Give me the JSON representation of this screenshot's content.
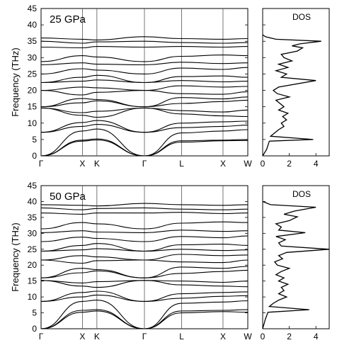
{
  "chart_data": [
    {
      "type": "line",
      "panel_label": "25 GPa",
      "ylabel": "Frequency (THz)",
      "ylim": [
        0,
        45
      ],
      "yticks": [
        0,
        5,
        10,
        15,
        20,
        25,
        30,
        35,
        40,
        45
      ],
      "path_labels": [
        "Γ",
        "X",
        "K",
        "Γ",
        "L",
        "X",
        "W"
      ],
      "path_positions": [
        0,
        0.2,
        0.27,
        0.5,
        0.68,
        0.88,
        1.0
      ],
      "bands": [
        {
          "y": [
            0,
            4.8,
            5.2,
            0,
            4.6,
            4.8,
            5.0
          ]
        },
        {
          "y": [
            0,
            4.5,
            4.9,
            0,
            4.2,
            4.6,
            4.7
          ]
        },
        {
          "y": [
            0,
            7.6,
            8.2,
            0,
            7.0,
            7.6,
            8.0
          ]
        },
        {
          "y": [
            7.2,
            9.0,
            9.6,
            7.2,
            8.6,
            9.0,
            9.4
          ]
        },
        {
          "y": [
            7.2,
            10.2,
            10.8,
            7.2,
            10.0,
            10.4,
            10.6
          ]
        },
        {
          "y": [
            14.6,
            12.4,
            11.8,
            14.6,
            12.8,
            12.2,
            12.0
          ]
        },
        {
          "y": [
            14.6,
            13.2,
            13.6,
            14.6,
            13.8,
            13.4,
            14.0
          ]
        },
        {
          "y": [
            15.0,
            16.2,
            16.8,
            15.0,
            16.0,
            16.6,
            17.0
          ]
        },
        {
          "y": [
            15.0,
            17.5,
            17.2,
            15.0,
            17.8,
            17.4,
            18.0
          ]
        },
        {
          "y": [
            20.0,
            18.6,
            19.4,
            20.0,
            19.0,
            18.8,
            19.6
          ]
        },
        {
          "y": [
            20.0,
            21.0,
            20.8,
            20.0,
            21.4,
            21.0,
            21.2
          ]
        },
        {
          "y": [
            22.4,
            22.8,
            23.2,
            22.4,
            23.0,
            22.6,
            22.8
          ]
        },
        {
          "y": [
            22.4,
            24.0,
            24.6,
            22.4,
            24.2,
            24.4,
            24.0
          ]
        },
        {
          "y": [
            25.0,
            26.6,
            26.2,
            25.0,
            26.8,
            26.4,
            27.0
          ]
        },
        {
          "y": [
            27.8,
            28.4,
            28.0,
            27.8,
            28.6,
            28.2,
            28.4
          ]
        },
        {
          "y": [
            28.8,
            30.6,
            30.2,
            28.8,
            30.4,
            30.8,
            30.6
          ]
        },
        {
          "y": [
            33.2,
            33.0,
            33.4,
            33.2,
            33.4,
            33.2,
            33.4
          ]
        },
        {
          "y": [
            35.0,
            34.4,
            34.8,
            35.0,
            34.6,
            34.4,
            34.6
          ]
        },
        {
          "y": [
            36.0,
            35.6,
            35.4,
            36.4,
            35.8,
            35.6,
            35.8
          ]
        }
      ],
      "dos": {
        "label": "DOS",
        "xlim": [
          0,
          5
        ],
        "xticks": [
          0,
          2,
          4
        ],
        "points": [
          [
            0,
            0
          ],
          [
            0.3,
            2
          ],
          [
            0.5,
            4.5
          ],
          [
            3.8,
            5
          ],
          [
            0.6,
            6
          ],
          [
            0.9,
            7
          ],
          [
            1.2,
            8
          ],
          [
            1.6,
            9
          ],
          [
            1.4,
            10
          ],
          [
            1.8,
            11
          ],
          [
            1.5,
            12
          ],
          [
            1.9,
            13
          ],
          [
            1.2,
            14
          ],
          [
            1.6,
            15
          ],
          [
            1.3,
            16
          ],
          [
            1.0,
            17
          ],
          [
            2.0,
            18
          ],
          [
            1.1,
            19
          ],
          [
            0.8,
            20
          ],
          [
            1.2,
            21
          ],
          [
            4.0,
            23
          ],
          [
            1.4,
            24
          ],
          [
            1.8,
            25
          ],
          [
            1.0,
            26
          ],
          [
            1.9,
            27
          ],
          [
            1.2,
            28
          ],
          [
            2.2,
            29
          ],
          [
            1.6,
            30
          ],
          [
            1.4,
            31
          ],
          [
            2.6,
            32
          ],
          [
            3.0,
            33
          ],
          [
            2.2,
            33.6
          ],
          [
            2.8,
            34.2
          ],
          [
            4.4,
            35
          ],
          [
            1.0,
            35.6
          ],
          [
            0.2,
            36.4
          ],
          [
            0,
            37
          ]
        ]
      }
    },
    {
      "type": "line",
      "panel_label": "50 GPa",
      "ylabel": "Frequency (THz)",
      "ylim": [
        0,
        45
      ],
      "yticks": [
        0,
        5,
        10,
        15,
        20,
        25,
        30,
        35,
        40,
        45
      ],
      "path_labels": [
        "Γ",
        "X",
        "K",
        "Γ",
        "L",
        "X",
        "W"
      ],
      "path_positions": [
        0,
        0.2,
        0.27,
        0.5,
        0.68,
        0.88,
        1.0
      ],
      "bands": [
        {
          "y": [
            0,
            5.8,
            6.0,
            0,
            5.6,
            5.8,
            6.0
          ]
        },
        {
          "y": [
            0,
            5.2,
            5.6,
            0,
            5.0,
            5.4,
            5.2
          ]
        },
        {
          "y": [
            0,
            8.6,
            9.0,
            0,
            8.0,
            8.4,
            8.8
          ]
        },
        {
          "y": [
            8.6,
            10.0,
            10.6,
            8.6,
            9.6,
            10.2,
            10.4
          ]
        },
        {
          "y": [
            8.6,
            11.4,
            11.8,
            8.6,
            11.0,
            11.4,
            11.6
          ]
        },
        {
          "y": [
            15.2,
            13.4,
            13.0,
            15.2,
            13.8,
            13.4,
            13.2
          ]
        },
        {
          "y": [
            15.2,
            14.4,
            14.8,
            15.2,
            15.0,
            14.6,
            15.0
          ]
        },
        {
          "y": [
            16.0,
            17.6,
            18.2,
            16.0,
            17.4,
            18.0,
            18.4
          ]
        },
        {
          "y": [
            16.0,
            19.0,
            18.6,
            16.0,
            19.4,
            19.0,
            19.6
          ]
        },
        {
          "y": [
            21.6,
            20.6,
            21.4,
            21.6,
            21.0,
            20.8,
            21.6
          ]
        },
        {
          "y": [
            21.6,
            23.0,
            22.6,
            21.6,
            23.4,
            23.0,
            23.2
          ]
        },
        {
          "y": [
            24.4,
            24.8,
            25.2,
            24.4,
            25.0,
            24.6,
            24.8
          ]
        },
        {
          "y": [
            24.4,
            26.2,
            26.8,
            24.4,
            26.4,
            26.6,
            26.2
          ]
        },
        {
          "y": [
            27.4,
            28.8,
            28.4,
            27.4,
            29.0,
            28.6,
            29.2
          ]
        },
        {
          "y": [
            30.2,
            30.8,
            30.4,
            30.2,
            31.0,
            30.6,
            30.8
          ]
        },
        {
          "y": [
            31.4,
            33.4,
            33.0,
            31.4,
            33.2,
            33.6,
            33.4
          ]
        },
        {
          "y": [
            36.4,
            36.0,
            36.4,
            36.4,
            36.6,
            36.2,
            36.4
          ]
        },
        {
          "y": [
            38.0,
            37.4,
            37.8,
            38.0,
            37.6,
            37.4,
            37.6
          ]
        },
        {
          "y": [
            39.0,
            38.8,
            38.6,
            39.4,
            39.0,
            38.8,
            39.0
          ]
        }
      ],
      "dos": {
        "label": "DOS",
        "xlim": [
          0,
          5
        ],
        "xticks": [
          0,
          2,
          4
        ],
        "points": [
          [
            0,
            0
          ],
          [
            0.2,
            3
          ],
          [
            0.4,
            5.2
          ],
          [
            3.5,
            6
          ],
          [
            0.5,
            7
          ],
          [
            0.8,
            8
          ],
          [
            1.2,
            9
          ],
          [
            1.8,
            10
          ],
          [
            1.2,
            11
          ],
          [
            1.6,
            12
          ],
          [
            1.4,
            13
          ],
          [
            1.9,
            14
          ],
          [
            1.2,
            15
          ],
          [
            1.6,
            16
          ],
          [
            1.0,
            17
          ],
          [
            1.4,
            18
          ],
          [
            2.0,
            19
          ],
          [
            1.1,
            20
          ],
          [
            0.9,
            21
          ],
          [
            1.5,
            22
          ],
          [
            1.2,
            23
          ],
          [
            1.8,
            24
          ],
          [
            5.0,
            25
          ],
          [
            1.4,
            26
          ],
          [
            1.2,
            27
          ],
          [
            1.7,
            28
          ],
          [
            1.0,
            29
          ],
          [
            3.2,
            30.2
          ],
          [
            1.2,
            31
          ],
          [
            1.4,
            32
          ],
          [
            1.0,
            33
          ],
          [
            2.0,
            34
          ],
          [
            2.6,
            35.2
          ],
          [
            1.6,
            36
          ],
          [
            2.4,
            37
          ],
          [
            4.0,
            38.2
          ],
          [
            0.6,
            39
          ],
          [
            0,
            40
          ]
        ]
      }
    }
  ]
}
